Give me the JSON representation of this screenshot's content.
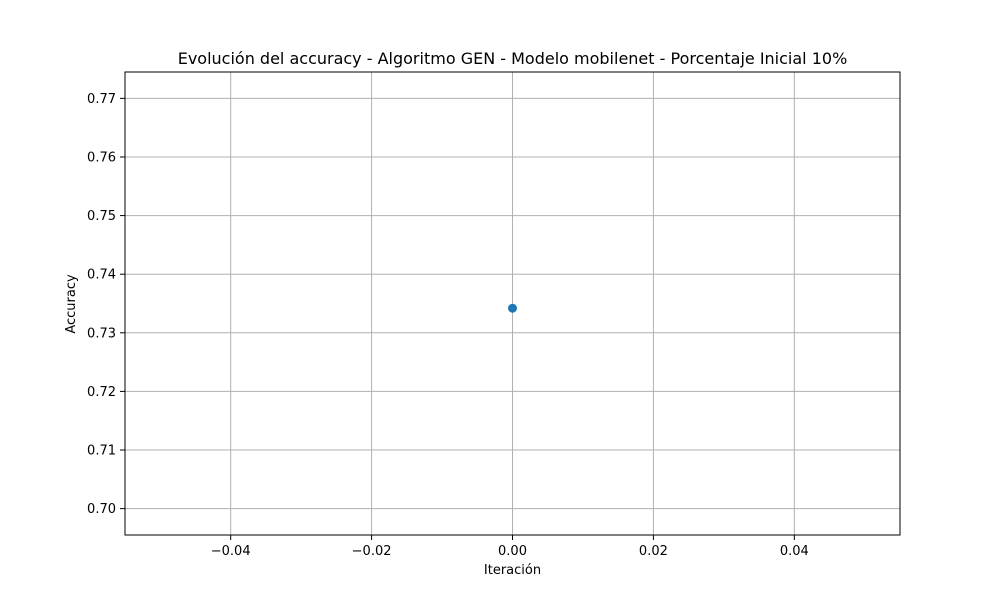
{
  "chart_data": {
    "type": "scatter",
    "title": "Evolución del accuracy - Algoritmo GEN - Modelo mobilenet - Porcentaje Inicial 10%",
    "xlabel": "Iteración",
    "ylabel": "Accuracy",
    "xlim": [
      -0.055,
      0.055
    ],
    "ylim": [
      0.6955,
      0.7745
    ],
    "x_ticks": [
      -0.04,
      -0.02,
      0.0,
      0.02,
      0.04
    ],
    "x_tick_labels": [
      "−0.04",
      "−0.02",
      "0.00",
      "0.02",
      "0.04"
    ],
    "y_ticks": [
      0.7,
      0.71,
      0.72,
      0.73,
      0.74,
      0.75,
      0.76,
      0.77
    ],
    "y_tick_labels": [
      "0.70",
      "0.71",
      "0.72",
      "0.73",
      "0.74",
      "0.75",
      "0.76",
      "0.77"
    ],
    "grid": true,
    "series": [
      {
        "color": "#1f77b4",
        "marker": "circle",
        "points": [
          {
            "x": 0,
            "y": 0.7342
          }
        ]
      }
    ]
  }
}
